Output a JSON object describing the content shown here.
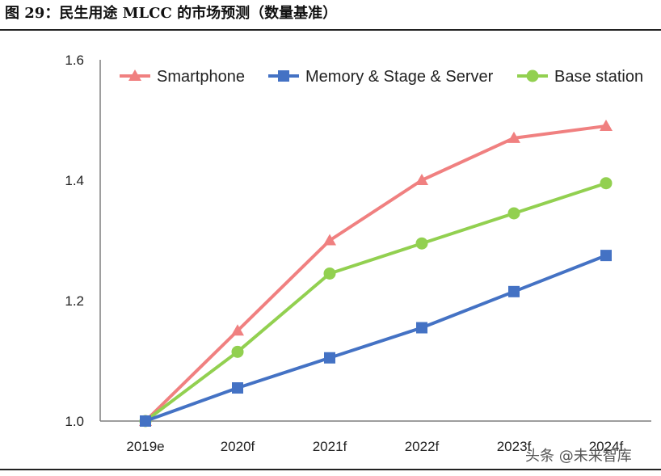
{
  "figure": {
    "title": "图 29：民生用途 MLCC 的市场预测（数量基准）",
    "watermark": "头条 @未来智库"
  },
  "chart_data": {
    "type": "line",
    "categories": [
      "2019e",
      "2020f",
      "2021f",
      "2022f",
      "2023f",
      "2024f"
    ],
    "ylim": [
      1.0,
      1.6
    ],
    "yticks": [
      "1.0",
      "1.2",
      "1.4",
      "1.6"
    ],
    "grid": false,
    "legend_position": "top",
    "series": [
      {
        "name": "Smartphone",
        "color": "#f08080",
        "marker": "triangle",
        "values": [
          1.0,
          1.15,
          1.3,
          1.4,
          1.47,
          1.49
        ]
      },
      {
        "name": "Memory & Stage & Server",
        "color": "#4472c4",
        "marker": "square",
        "values": [
          1.0,
          1.055,
          1.105,
          1.155,
          1.215,
          1.275
        ]
      },
      {
        "name": "Base station",
        "color": "#92d050",
        "marker": "circle",
        "values": [
          1.0,
          1.115,
          1.245,
          1.295,
          1.345,
          1.395
        ]
      }
    ]
  }
}
